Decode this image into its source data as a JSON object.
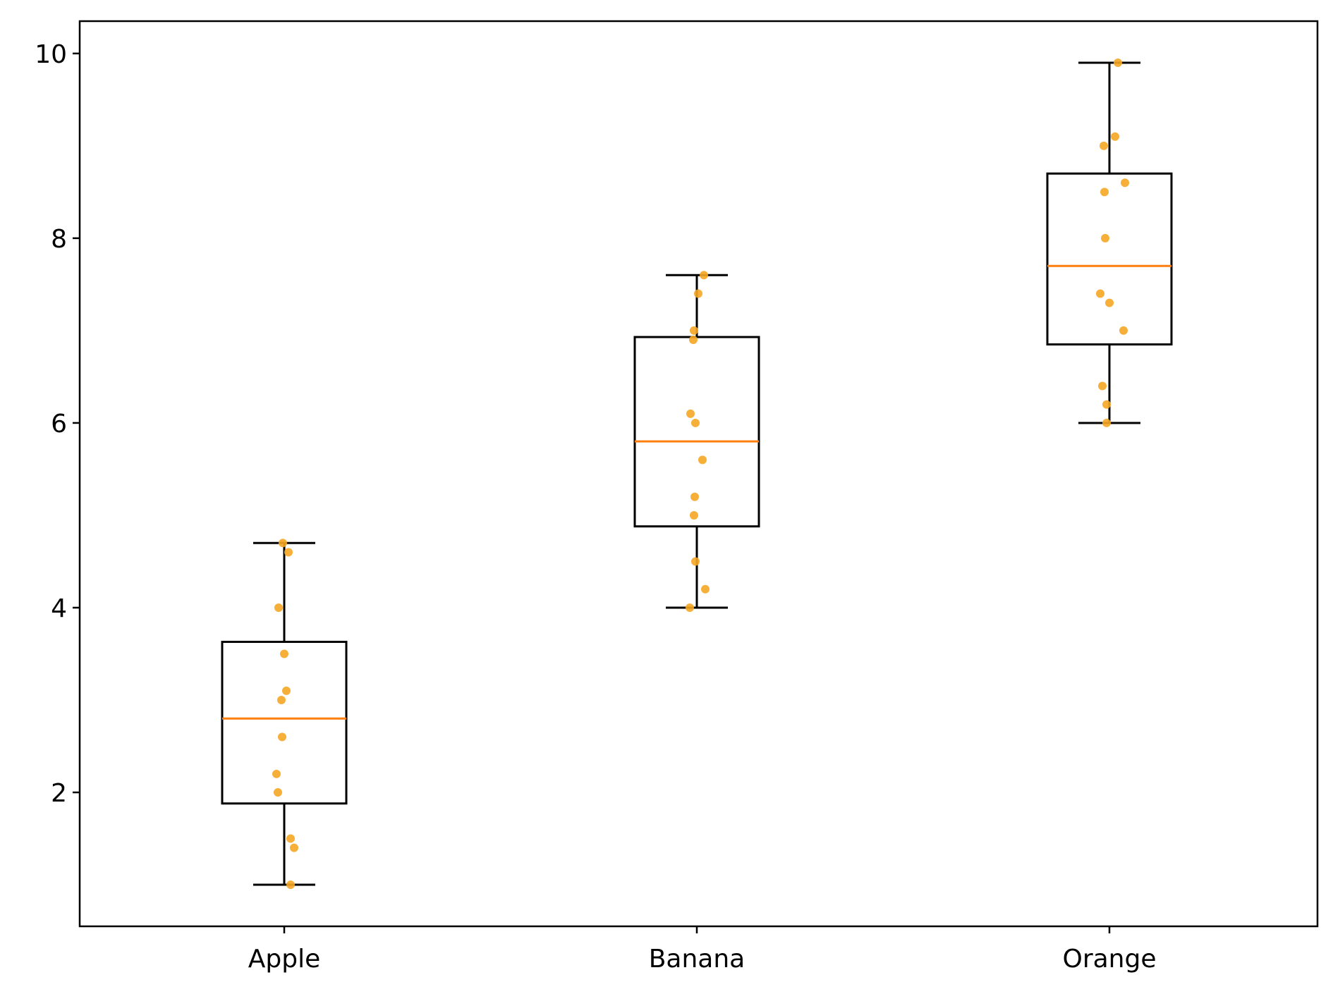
{
  "chart_data": {
    "type": "box",
    "categories": [
      "Apple",
      "Banana",
      "Orange"
    ],
    "points": [
      [
        1.0,
        1.4,
        1.5,
        2.0,
        2.2,
        2.6,
        3.0,
        3.1,
        3.5,
        4.0,
        4.6,
        4.7
      ],
      [
        4.0,
        4.2,
        4.5,
        5.0,
        5.2,
        5.6,
        6.0,
        6.1,
        6.9,
        7.0,
        7.4,
        7.6
      ],
      [
        6.0,
        6.2,
        6.4,
        7.0,
        7.3,
        7.4,
        8.0,
        8.5,
        8.6,
        9.0,
        9.1,
        9.9
      ]
    ],
    "boxes": [
      {
        "name": "Apple",
        "whisker_low": 1.0,
        "q1": 1.88,
        "median": 2.8,
        "q3": 3.63,
        "whisker_high": 4.7
      },
      {
        "name": "Banana",
        "whisker_low": 4.0,
        "q1": 4.88,
        "median": 5.8,
        "q3": 6.93,
        "whisker_high": 7.6
      },
      {
        "name": "Orange",
        "whisker_low": 6.0,
        "q1": 6.85,
        "median": 7.7,
        "q3": 8.7,
        "whisker_high": 9.9
      }
    ],
    "yticks": [
      2,
      4,
      6,
      8,
      10
    ],
    "ylim": [
      0.55,
      10.35
    ],
    "title": "",
    "xlabel": "",
    "ylabel": "",
    "grid": false,
    "colors": {
      "box": "#000000",
      "median": "#ff7f0e",
      "points": "#f5a623"
    }
  }
}
